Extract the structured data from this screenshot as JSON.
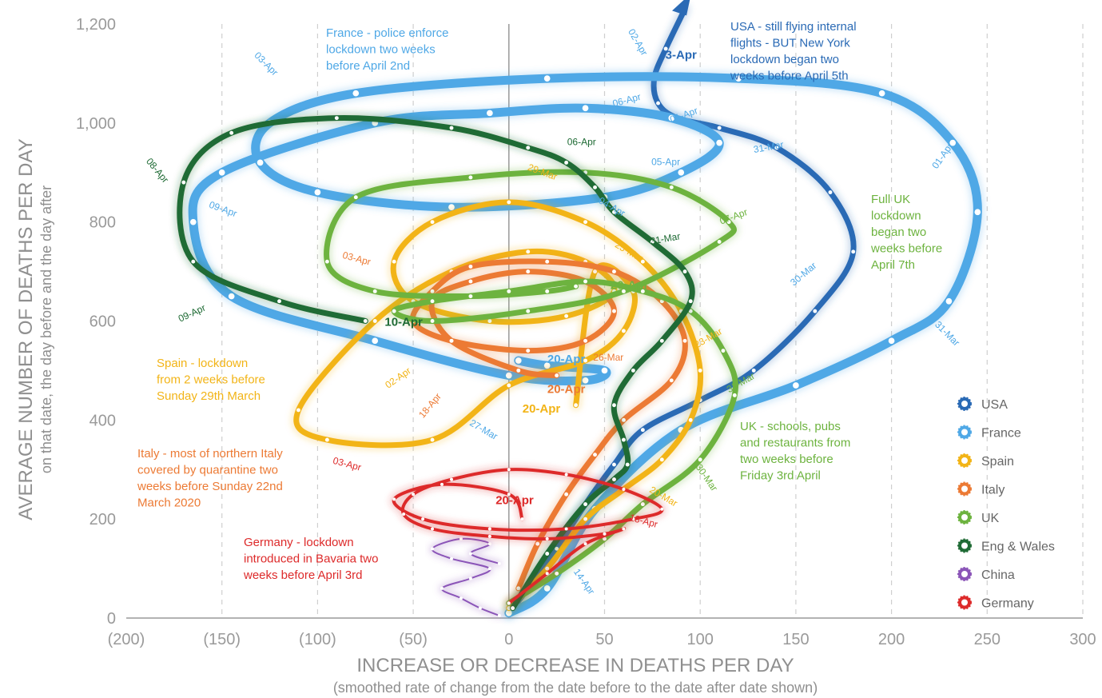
{
  "chart_data": {
    "type": "line",
    "xlabel": "INCREASE OR DECREASE IN DEATHS PER DAY",
    "xlabel_sub": "(smoothed rate of change from the date before to the date after date shown)",
    "ylabel": "AVERAGE NUMBER OF DEATHS PER DAY",
    "ylabel_sub": "on that date, the day before and the day after",
    "xlim": [
      -200,
      300
    ],
    "ylim": [
      0,
      1200
    ],
    "x_ticks": [
      -200,
      -150,
      -100,
      -50,
      0,
      50,
      100,
      150,
      200,
      250,
      300
    ],
    "x_tick_labels": [
      "(200)",
      "(150)",
      "(100)",
      "(50)",
      "0",
      "50",
      "100",
      "150",
      "200",
      "250",
      "300"
    ],
    "y_ticks": [
      0,
      200,
      400,
      600,
      800,
      1000,
      1200
    ],
    "y_tick_labels": [
      "0",
      "200",
      "400",
      "600",
      "800",
      "1,000",
      "1,200"
    ],
    "grid": "vertical dashed",
    "legend_position": "bottom-right",
    "series": [
      {
        "name": "USA",
        "color": "#2a6ab5",
        "x": [
          0,
          10,
          25,
          40,
          55,
          70,
          100,
          128,
          160,
          180,
          168,
          140,
          110,
          88,
          78,
          76,
          82,
          92
        ],
        "y": [
          10,
          60,
          140,
          230,
          310,
          380,
          440,
          500,
          620,
          740,
          860,
          950,
          990,
          1010,
          1040,
          1090,
          1150,
          1230
        ]
      },
      {
        "name": "France",
        "color": "#4fa8e6",
        "x": [
          0,
          20,
          45,
          90,
          150,
          200,
          230,
          245,
          232,
          195,
          120,
          20,
          -80,
          -125,
          -130,
          -100,
          -30,
          50,
          90,
          110,
          85,
          40,
          -10,
          -70,
          -150,
          -165,
          -145,
          -70,
          0,
          40,
          50,
          20,
          5
        ],
        "y": [
          10,
          60,
          220,
          380,
          470,
          560,
          640,
          820,
          960,
          1060,
          1090,
          1090,
          1060,
          1000,
          920,
          860,
          830,
          850,
          900,
          960,
          1010,
          1030,
          1020,
          1000,
          900,
          800,
          650,
          560,
          490,
          480,
          500,
          510,
          520
        ]
      },
      {
        "name": "Spain",
        "color": "#f2b417",
        "x": [
          0,
          20,
          40,
          60,
          80,
          95,
          100,
          90,
          70,
          40,
          0,
          -40,
          -60,
          -50,
          -10,
          30,
          55,
          40,
          10,
          -30,
          -70,
          -110,
          -95,
          -40,
          0,
          40,
          60,
          65,
          45,
          35
        ],
        "y": [
          20,
          100,
          200,
          260,
          320,
          400,
          500,
          620,
          720,
          800,
          840,
          800,
          720,
          640,
          600,
          610,
          660,
          720,
          740,
          700,
          600,
          420,
          360,
          360,
          470,
          520,
          580,
          660,
          700,
          430
        ]
      },
      {
        "name": "Italy",
        "color": "#ec7a34",
        "x": [
          5,
          15,
          30,
          45,
          60,
          85,
          92,
          80,
          55,
          20,
          -20,
          -40,
          -50,
          -30,
          10,
          40,
          55,
          40,
          10,
          -20,
          -40,
          -30,
          5,
          25
        ],
        "y": [
          60,
          150,
          250,
          330,
          400,
          480,
          560,
          640,
          700,
          720,
          710,
          660,
          600,
          560,
          540,
          560,
          620,
          680,
          700,
          680,
          640,
          560,
          500,
          490
        ]
      },
      {
        "name": "UK",
        "color": "#6db33f",
        "x": [
          0,
          25,
          50,
          70,
          100,
          118,
          112,
          95,
          70,
          40,
          0,
          -40,
          -60,
          -40,
          10,
          60,
          110,
          115,
          85,
          40,
          -20,
          -80,
          -95,
          -70,
          -20,
          20,
          35
        ],
        "y": [
          30,
          90,
          160,
          230,
          320,
          450,
          540,
          620,
          660,
          680,
          660,
          640,
          620,
          600,
          620,
          660,
          760,
          800,
          870,
          900,
          890,
          850,
          720,
          660,
          650,
          660,
          670
        ]
      },
      {
        "name": "Eng & Wales",
        "color": "#1f6b35",
        "x": [
          2,
          20,
          40,
          55,
          62,
          60,
          55,
          65,
          80,
          95,
          92,
          75,
          55,
          45,
          30,
          10,
          -30,
          -90,
          -145,
          -170,
          -165,
          -120,
          -75
        ],
        "y": [
          20,
          130,
          230,
          280,
          310,
          360,
          430,
          500,
          560,
          640,
          700,
          760,
          820,
          870,
          920,
          950,
          990,
          1010,
          980,
          880,
          720,
          640,
          600
        ]
      },
      {
        "name": "China",
        "color": "#8b55b8",
        "x": [
          -5,
          -15,
          -25,
          -35,
          -20,
          -10,
          -30,
          -40,
          -25,
          -10,
          -20,
          -5
        ],
        "y": [
          5,
          20,
          40,
          60,
          80,
          100,
          120,
          140,
          160,
          150,
          130,
          110
        ]
      },
      {
        "name": "Germany",
        "color": "#dd2a2a",
        "x": [
          0,
          20,
          40,
          60,
          50,
          20,
          -10,
          -40,
          -55,
          -50,
          -30,
          0,
          30,
          60,
          80,
          65,
          30,
          -10,
          -45,
          -60,
          -35,
          0,
          7
        ],
        "y": [
          30,
          90,
          150,
          180,
          170,
          160,
          165,
          180,
          210,
          250,
          280,
          300,
          290,
          260,
          220,
          200,
          180,
          180,
          200,
          240,
          270,
          250,
          200
        ]
      }
    ],
    "annotations": [
      {
        "text": "France - police enforce lockdown two weeks before April 2nd",
        "color": "#4fa8e6"
      },
      {
        "text": "USA - still flying internal flights - BUT New York lockdown began two weeks before April 5th",
        "color": "#2a6ab5"
      },
      {
        "text": "Full UK lockdown began two weeks before April 7th",
        "color": "#6db33f"
      },
      {
        "text": "Spain - lockdown from 2 weeks before Sunday 29th March",
        "color": "#f2b417"
      },
      {
        "text": "Italy - most of northern Italy covered by quarantine two weeks before Sunday 22nd March 2020",
        "color": "#ec7a34"
      },
      {
        "text": "Germany - lockdown introduced in Bavaria two weeks before April 3rd",
        "color": "#dd2a2a"
      },
      {
        "text": "UK - schools, pubs and restaurants from two weeks before Friday 3rd April",
        "color": "#6db33f"
      }
    ],
    "date_labels": [
      {
        "text": "3-Apr",
        "color": "#2a6ab5",
        "x": 90,
        "y": 1130,
        "bold": true
      },
      {
        "text": "10-Apr",
        "color": "#1f6b35",
        "x": -55,
        "y": 590,
        "bold": true
      },
      {
        "text": "20-Apr",
        "color": "#4fa8e6",
        "x": 30,
        "y": 515,
        "bold": true
      },
      {
        "text": "20-Apr",
        "color": "#ec7a34",
        "x": 30,
        "y": 455,
        "bold": true
      },
      {
        "text": "20-Apr",
        "color": "#f2b417",
        "x": 17,
        "y": 415,
        "bold": true
      },
      {
        "text": "20-Apr",
        "color": "#dd2a2a",
        "x": 3,
        "y": 230,
        "bold": true
      },
      {
        "text": "20-Apr",
        "color": "#6db33f",
        "x": 63,
        "y": 665,
        "bold": true
      },
      {
        "text": "03-Apr",
        "color": "#4fa8e6",
        "x": -128,
        "y": 1115,
        "rot": 45
      },
      {
        "text": "02-Apr",
        "color": "#4fa8e6",
        "x": 66,
        "y": 1160,
        "rot": 60
      },
      {
        "text": "06-Apr",
        "color": "#4fa8e6",
        "x": 62,
        "y": 1040,
        "rot": -15
      },
      {
        "text": "01-Apr",
        "color": "#4fa8e6",
        "x": 92,
        "y": 1010,
        "rot": -20
      },
      {
        "text": "31-Mar",
        "color": "#4fa8e6",
        "x": 136,
        "y": 945,
        "rot": -10
      },
      {
        "text": "05-Apr",
        "color": "#4fa8e6",
        "x": 82,
        "y": 915
      },
      {
        "text": "01-Apr",
        "color": "#4fa8e6",
        "x": 228,
        "y": 930,
        "rot": -55
      },
      {
        "text": "04-Apr",
        "color": "#4fa8e6",
        "x": 53,
        "y": 825,
        "rot": 30
      },
      {
        "text": "09-Apr",
        "color": "#4fa8e6",
        "x": -150,
        "y": 820,
        "rot": 20
      },
      {
        "text": "30-Mar",
        "color": "#4fa8e6",
        "x": 155,
        "y": 690,
        "rot": -40
      },
      {
        "text": "31-Mar",
        "color": "#4fa8e6",
        "x": 228,
        "y": 570,
        "rot": 45
      },
      {
        "text": "27-Mar",
        "color": "#4fa8e6",
        "x": -14,
        "y": 375,
        "rot": 30
      },
      {
        "text": "08-Apr",
        "color": "#1f6b35",
        "x": -185,
        "y": 900,
        "rot": 50
      },
      {
        "text": "06-Apr",
        "color": "#1f6b35",
        "x": 38,
        "y": 955
      },
      {
        "text": "31-Mar",
        "color": "#1f6b35",
        "x": 82,
        "y": 760,
        "rot": -10
      },
      {
        "text": "09-Apr",
        "color": "#1f6b35",
        "x": -165,
        "y": 610,
        "rot": -25
      },
      {
        "text": "29-Mar",
        "color": "#f2b417",
        "x": 17,
        "y": 895,
        "rot": 20
      },
      {
        "text": "25-Mar",
        "color": "#f2b417",
        "x": 62,
        "y": 735,
        "rot": 30
      },
      {
        "text": "23-Mar",
        "color": "#f2b417",
        "x": 105,
        "y": 560,
        "rot": -30
      },
      {
        "text": "02-Apr",
        "color": "#f2b417",
        "x": -57,
        "y": 480,
        "rot": -35
      },
      {
        "text": "20-Mar",
        "color": "#f2b417",
        "x": 80,
        "y": 240,
        "rot": 30
      },
      {
        "text": "03-Apr",
        "color": "#ec7a34",
        "x": -80,
        "y": 720,
        "rot": 15
      },
      {
        "text": "26-Mar",
        "color": "#ec7a34",
        "x": 52,
        "y": 520
      },
      {
        "text": "18-Apr",
        "color": "#ec7a34",
        "x": -40,
        "y": 425,
        "rot": -50
      },
      {
        "text": "07-Apr",
        "color": "#6db33f",
        "x": 118,
        "y": 805,
        "rot": -20
      },
      {
        "text": "31-Mar",
        "color": "#6db33f",
        "x": 122,
        "y": 470,
        "rot": -30
      },
      {
        "text": "30-Mar",
        "color": "#6db33f",
        "x": 102,
        "y": 280,
        "rot": 55
      },
      {
        "text": "03-Apr",
        "color": "#dd2a2a",
        "x": -85,
        "y": 305,
        "rot": 15
      },
      {
        "text": "13-Apr",
        "color": "#dd2a2a",
        "x": 70,
        "y": 190,
        "rot": 15
      },
      {
        "text": "14-Apr",
        "color": "#4fa8e6",
        "x": 38,
        "y": 70,
        "rot": 55
      }
    ]
  }
}
